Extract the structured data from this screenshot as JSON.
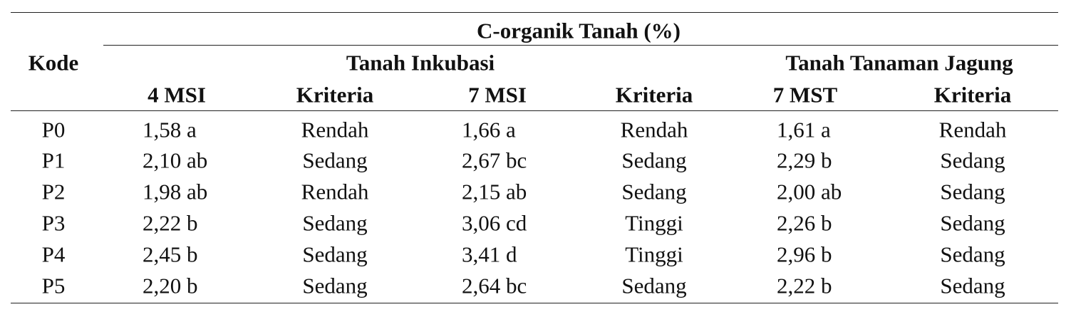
{
  "table": {
    "corner": "Kode",
    "title": "C-organik Tanah (%)",
    "groups": [
      "Tanah Inkubasi",
      "Tanah Tanaman Jagung"
    ],
    "columns": [
      "4 MSI",
      "Kriteria",
      "7 MSI",
      "Kriteria",
      "7 MST",
      "Kriteria"
    ],
    "rows": [
      [
        "P0",
        "1,58 a",
        "Rendah",
        "1,66 a",
        "Rendah",
        "1,61 a",
        "Rendah"
      ],
      [
        "P1",
        "2,10 ab",
        "Sedang",
        "2,67 bc",
        "Sedang",
        "2,29 b",
        "Sedang"
      ],
      [
        "P2",
        "1,98 ab",
        "Rendah",
        "2,15 ab",
        "Sedang",
        "2,00 ab",
        "Sedang"
      ],
      [
        "P3",
        "2,22 b",
        "Sedang",
        "3,06 cd",
        "Tinggi",
        "2,26 b",
        "Sedang"
      ],
      [
        "P4",
        "2,45 b",
        "Sedang",
        "3,41 d",
        "Tinggi",
        "2,96 b",
        "Sedang"
      ],
      [
        "P5",
        "2,20 b",
        "Sedang",
        "2,64 bc",
        "Sedang",
        "2,22 b",
        "Sedang"
      ]
    ]
  }
}
